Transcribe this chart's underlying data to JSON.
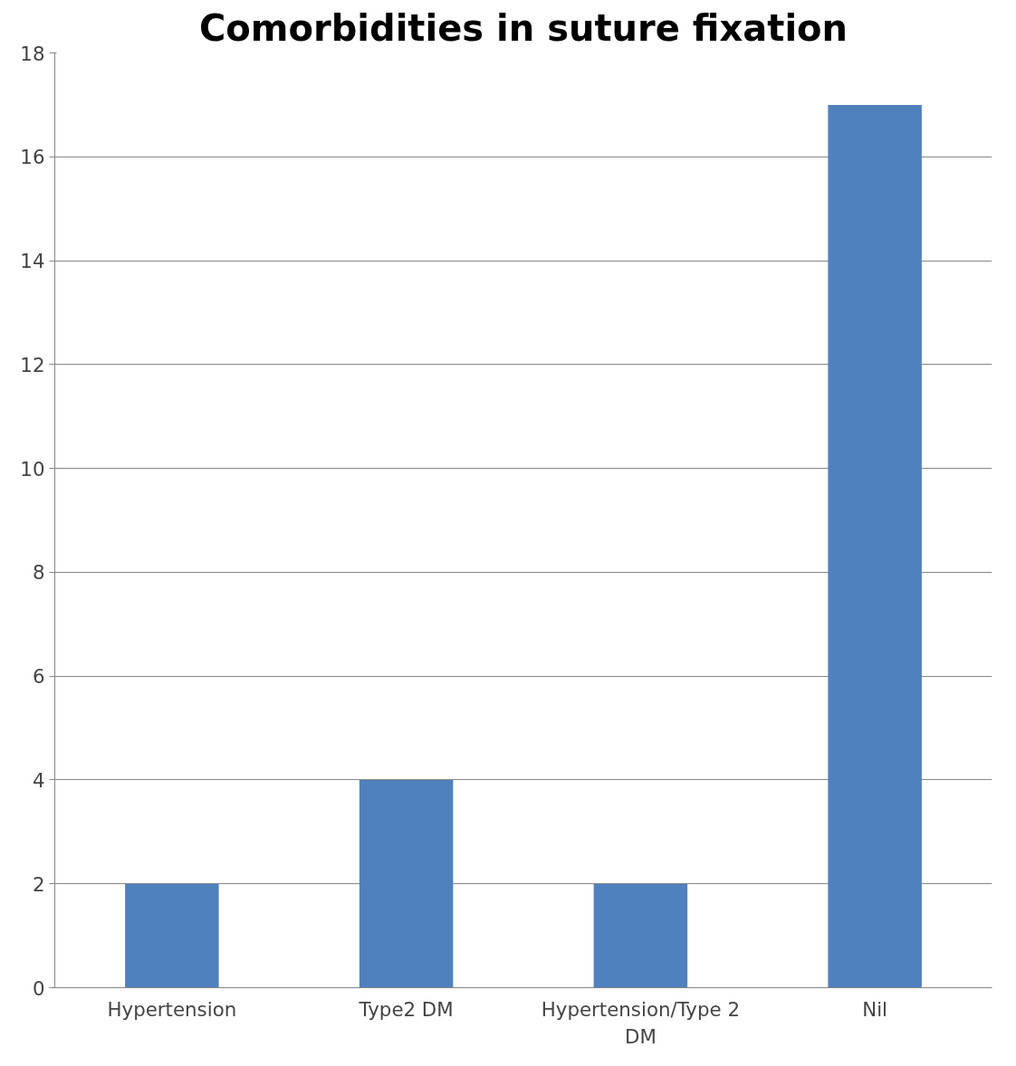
{
  "chart_data": {
    "type": "bar",
    "title": "Comorbidities in suture fixation",
    "categories": [
      "Hypertension",
      "Type2 DM",
      "Hypertension/Type 2 DM",
      "Nil"
    ],
    "values": [
      2,
      4,
      2,
      17
    ],
    "color": "#4f81bd",
    "ylim": [
      0,
      18
    ],
    "yticks": [
      0,
      2,
      4,
      6,
      8,
      10,
      12,
      14,
      16,
      18
    ],
    "grid": "y"
  }
}
